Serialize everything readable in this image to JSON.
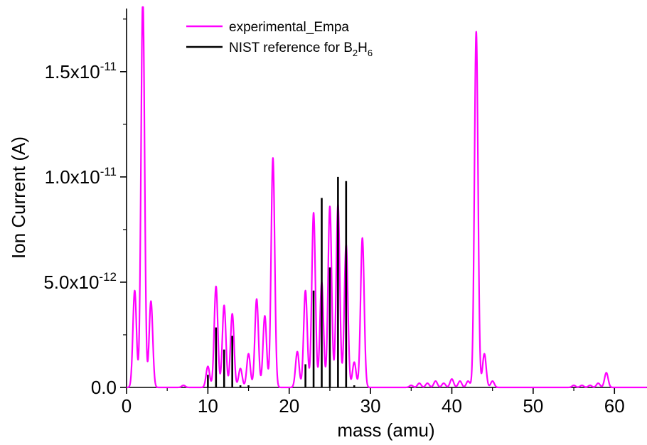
{
  "chart_data": {
    "type": "line",
    "title": "",
    "xlabel": "mass (amu)",
    "ylabel": "Ion Current (A)",
    "xlim": [
      0,
      64
    ],
    "ylim": [
      0,
      1.8e-11
    ],
    "x_ticks": [
      0,
      10,
      20,
      30,
      40,
      50,
      60
    ],
    "y_ticks": [
      {
        "value": 0,
        "label": "0.0",
        "exp": ""
      },
      {
        "value": 5e-12,
        "label": "5.0x10",
        "exp": "-12"
      },
      {
        "value": 1e-11,
        "label": "1.0x10",
        "exp": "-11"
      },
      {
        "value": 1.5e-11,
        "label": "1.5x10",
        "exp": "-11"
      }
    ],
    "legend_position": "top-center",
    "series": [
      {
        "name": "experimental_Empa",
        "color": "#ff00ff",
        "peaks": [
          [
            1,
            4.6e-12
          ],
          [
            2,
            1.85e-11
          ],
          [
            3,
            4.1e-12
          ],
          [
            7,
            1e-13
          ],
          [
            10,
            1e-12
          ],
          [
            11,
            4.8e-12
          ],
          [
            12,
            3.9e-12
          ],
          [
            13,
            3.5e-12
          ],
          [
            14,
            9e-13
          ],
          [
            15,
            1.6e-12
          ],
          [
            16,
            4.2e-12
          ],
          [
            17,
            3.4e-12
          ],
          [
            18,
            1.09e-11
          ],
          [
            21,
            1.7e-12
          ],
          [
            22,
            4.6e-12
          ],
          [
            23,
            8.3e-12
          ],
          [
            24,
            5e-12
          ],
          [
            25,
            8.6e-12
          ],
          [
            26,
            8.7e-12
          ],
          [
            27,
            6.8e-12
          ],
          [
            28,
            1.2e-12
          ],
          [
            29,
            7.1e-12
          ],
          [
            35,
            1e-13
          ],
          [
            36,
            2e-13
          ],
          [
            37,
            2e-13
          ],
          [
            38,
            3e-13
          ],
          [
            39,
            2e-13
          ],
          [
            40,
            4e-13
          ],
          [
            41,
            3e-13
          ],
          [
            42,
            3e-13
          ],
          [
            43,
            1.69e-11
          ],
          [
            44,
            1.6e-12
          ],
          [
            45,
            3e-13
          ],
          [
            55,
            1e-13
          ],
          [
            56,
            1e-13
          ],
          [
            57,
            1e-13
          ],
          [
            58,
            2e-13
          ],
          [
            59,
            7e-13
          ]
        ]
      },
      {
        "name": "NIST reference for B2H6",
        "color": "#000000",
        "bars": [
          [
            10,
            6e-13
          ],
          [
            11,
            2.85e-12
          ],
          [
            12,
            1.8e-12
          ],
          [
            13,
            2.45e-12
          ],
          [
            14,
            1e-13
          ],
          [
            15,
            1e-13
          ],
          [
            22,
            1.1e-12
          ],
          [
            23,
            4.6e-12
          ],
          [
            24,
            9e-12
          ],
          [
            25,
            5.7e-12
          ],
          [
            26,
            1e-11
          ],
          [
            27,
            9.8e-12
          ],
          [
            28,
            1e-13
          ]
        ]
      }
    ]
  },
  "legend": {
    "items": [
      {
        "label": "experimental_Empa",
        "color": "#ff00ff"
      },
      {
        "label_main": "NIST reference for B",
        "sub1": "2",
        "mid": "H",
        "sub2": "6",
        "color": "#000000"
      }
    ]
  }
}
